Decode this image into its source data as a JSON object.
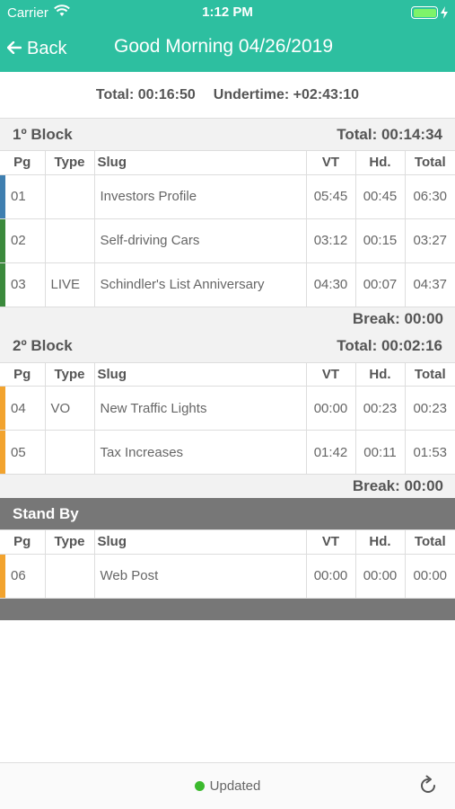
{
  "status_bar": {
    "carrier": "Carrier",
    "time": "1:12 PM"
  },
  "nav": {
    "back_label": "Back",
    "title": "Good Morning 04/26/2019"
  },
  "totals": {
    "total": "Total: 00:16:50",
    "undertime": "Undertime: +02:43:10"
  },
  "columns": {
    "pg": "Pg",
    "type": "Type",
    "slug": "Slug",
    "vt": "VT",
    "hd": "Hd.",
    "total": "Total"
  },
  "blocks": [
    {
      "title": "1º Block",
      "total": "Total: 00:14:34",
      "break": "Break: 00:00",
      "rows": [
        {
          "pg": "01",
          "type": "",
          "slug": "Investors Profile",
          "vt": "05:45",
          "hd": "00:45",
          "total": "06:30",
          "color": "#3f7fb0"
        },
        {
          "pg": "02",
          "type": "",
          "slug": "Self-driving Cars",
          "vt": "03:12",
          "hd": "00:15",
          "total": "03:27",
          "color": "#3b8a3c"
        },
        {
          "pg": "03",
          "type": "LIVE",
          "slug": "Schindler's List Anniversary",
          "vt": "04:30",
          "hd": "00:07",
          "total": "04:37",
          "color": "#3b8a3c"
        }
      ]
    },
    {
      "title": "2º Block",
      "total": "Total: 00:02:16",
      "break": "Break: 00:00",
      "rows": [
        {
          "pg": "04",
          "type": "VO",
          "slug": "New Traffic Lights",
          "vt": "00:00",
          "hd": "00:23",
          "total": "00:23",
          "color": "#f2a32e"
        },
        {
          "pg": "05",
          "type": "",
          "slug": "Tax Increases",
          "vt": "01:42",
          "hd": "00:11",
          "total": "01:53",
          "color": "#f2a32e"
        }
      ]
    }
  ],
  "standby": {
    "title": "Stand By",
    "rows": [
      {
        "pg": "06",
        "type": "",
        "slug": "Web Post",
        "vt": "00:00",
        "hd": "00:00",
        "total": "00:00",
        "color": "#f2a32e"
      }
    ]
  },
  "footer": {
    "status": "Updated",
    "status_color": "#3cba2e"
  },
  "colors": {
    "accent": "#2dbfa0",
    "standby": "#777777"
  }
}
